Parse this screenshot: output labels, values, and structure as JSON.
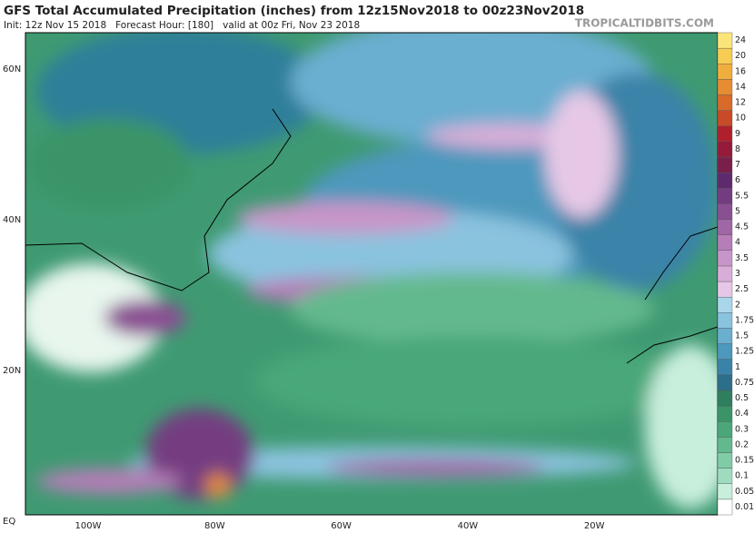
{
  "header": {
    "title": "GFS Total Accumulated Precipitation (inches) from 12z15Nov2018 to 00z23Nov2018",
    "subtitle": "Init: 12z Nov 15 2018   Forecast Hour: [180]   valid at 00z Fri, Nov 23 2018",
    "watermark": "TROPICALTIDBITS.COM"
  },
  "map": {
    "lat_labels": [
      "60N",
      "40N",
      "20N",
      "EQ"
    ],
    "lon_labels": [
      "100W",
      "80W",
      "60W",
      "40W",
      "20W"
    ]
  },
  "colorbar": {
    "levels": [
      "0.01",
      "0.05",
      "0.1",
      "0.15",
      "0.2",
      "0.3",
      "0.4",
      "0.5",
      "0.75",
      "1",
      "1.25",
      "1.5",
      "1.75",
      "2",
      "2.5",
      "3",
      "3.5",
      "4",
      "4.5",
      "5",
      "5.5",
      "6",
      "7",
      "8",
      "9",
      "10",
      "12",
      "14",
      "16",
      "20",
      "24"
    ],
    "colors": [
      "#ffffff",
      "#c8eedc",
      "#9fdcbf",
      "#7fcca6",
      "#63b98e",
      "#4aa779",
      "#3a9468",
      "#2f7f5f",
      "#2c6f8a",
      "#3a83a8",
      "#4d98bd",
      "#6aaed0",
      "#8ac3de",
      "#aad6ea",
      "#e6c8e6",
      "#d8aed8",
      "#c895c8",
      "#b67db8",
      "#a066a6",
      "#8a4f93",
      "#743c80",
      "#5e2a6e",
      "#7a1f4a",
      "#961a3a",
      "#b0202c",
      "#c84a28",
      "#d86a2a",
      "#e68c32",
      "#f0ae3e",
      "#f6cc52",
      "#fae678"
    ]
  }
}
